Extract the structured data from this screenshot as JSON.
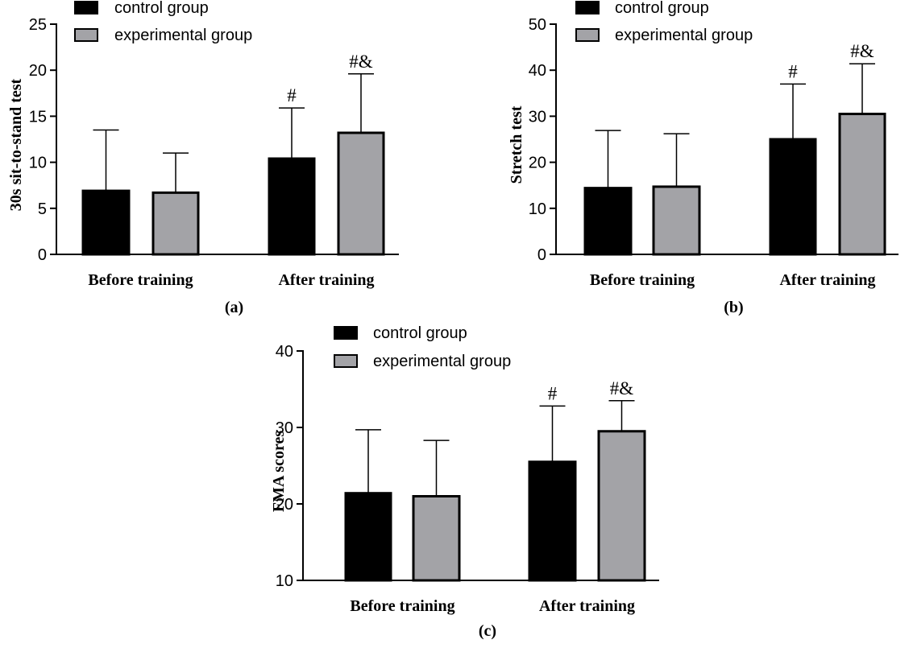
{
  "colors": {
    "control": "#000000",
    "experimental": "#a3a3a7",
    "axis": "#000000",
    "text": "#000000"
  },
  "legend": {
    "control": "control group",
    "experimental": "experimental group"
  },
  "chart_data": [
    {
      "type": "bar",
      "panel_label": "(a)",
      "ylabel": "30s sit-to-stand test",
      "ylim": [
        0,
        25
      ],
      "yticks": [
        0,
        5,
        10,
        15,
        20,
        25
      ],
      "categories": [
        "Before training",
        "After training"
      ],
      "series": [
        {
          "name": "control group",
          "values": [
            6.9,
            10.4
          ],
          "error": [
            6.6,
            5.5
          ],
          "annotations": [
            "",
            "#"
          ]
        },
        {
          "name": "experimental group",
          "values": [
            6.7,
            13.2
          ],
          "error": [
            4.3,
            6.4
          ],
          "annotations": [
            "",
            "#&"
          ]
        }
      ],
      "legend_position": "top-left"
    },
    {
      "type": "bar",
      "panel_label": "(b)",
      "ylabel": "Stretch test",
      "ylim": [
        0,
        50
      ],
      "yticks": [
        0,
        10,
        20,
        30,
        40,
        50
      ],
      "categories": [
        "Before training",
        "After training"
      ],
      "series": [
        {
          "name": "control group",
          "values": [
            14.4,
            25.0
          ],
          "error": [
            12.5,
            12.0
          ],
          "annotations": [
            "",
            "#"
          ]
        },
        {
          "name": "experimental group",
          "values": [
            14.7,
            30.5
          ],
          "error": [
            11.5,
            10.9
          ],
          "annotations": [
            "",
            "#&"
          ]
        }
      ],
      "legend_position": "top-left"
    },
    {
      "type": "bar",
      "panel_label": "(c)",
      "ylabel": "FMA scores",
      "ylim": [
        10,
        40
      ],
      "yticks": [
        10,
        20,
        30,
        40
      ],
      "categories": [
        "Before training",
        "After training"
      ],
      "series": [
        {
          "name": "control group",
          "values": [
            21.4,
            25.5
          ],
          "error": [
            8.3,
            7.3
          ],
          "annotations": [
            "",
            "#"
          ]
        },
        {
          "name": "experimental group",
          "values": [
            21.0,
            29.5
          ],
          "error": [
            7.3,
            4.0
          ],
          "annotations": [
            "",
            "#&"
          ]
        }
      ],
      "legend_position": "top-left"
    }
  ]
}
